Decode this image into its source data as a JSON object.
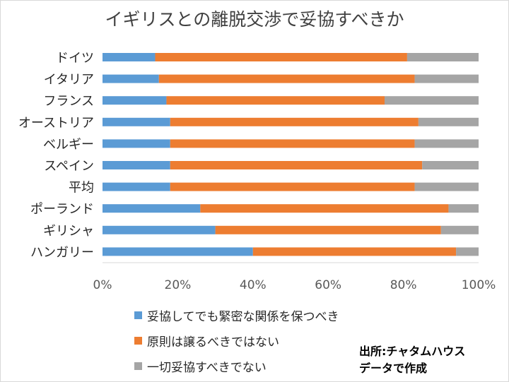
{
  "chart_data": {
    "type": "bar",
    "orientation": "horizontal",
    "stacked": true,
    "normalized": true,
    "title": "イギリスとの離脱交渉で妥協すべきか",
    "categories": [
      "ドイツ",
      "イタリア",
      "フランス",
      "オーストリア",
      "ベルギー",
      "スペイン",
      "平均",
      "ポーランド",
      "ギリシャ",
      "ハンガリー"
    ],
    "series": [
      {
        "name": "妥協してでも緊密な関係を保つべき",
        "color": "#5b9bd5",
        "values": [
          14,
          15,
          17,
          18,
          18,
          18,
          18,
          26,
          30,
          40
        ]
      },
      {
        "name": "原則は譲るべきではない",
        "color": "#ed7d31",
        "values": [
          67,
          68,
          58,
          66,
          65,
          67,
          65,
          66,
          60,
          54
        ]
      },
      {
        "name": "一切妥協すべきでない",
        "color": "#a5a5a5",
        "values": [
          19,
          17,
          25,
          16,
          17,
          15,
          17,
          8,
          10,
          6
        ]
      }
    ],
    "xlim": [
      0,
      100
    ],
    "xticks": [
      "0%",
      "20%",
      "40%",
      "60%",
      "80%",
      "100%"
    ],
    "grid": false,
    "legend_position": "bottom-left"
  },
  "source_note": [
    "出所:チャタムハウス",
    "データで作成"
  ]
}
